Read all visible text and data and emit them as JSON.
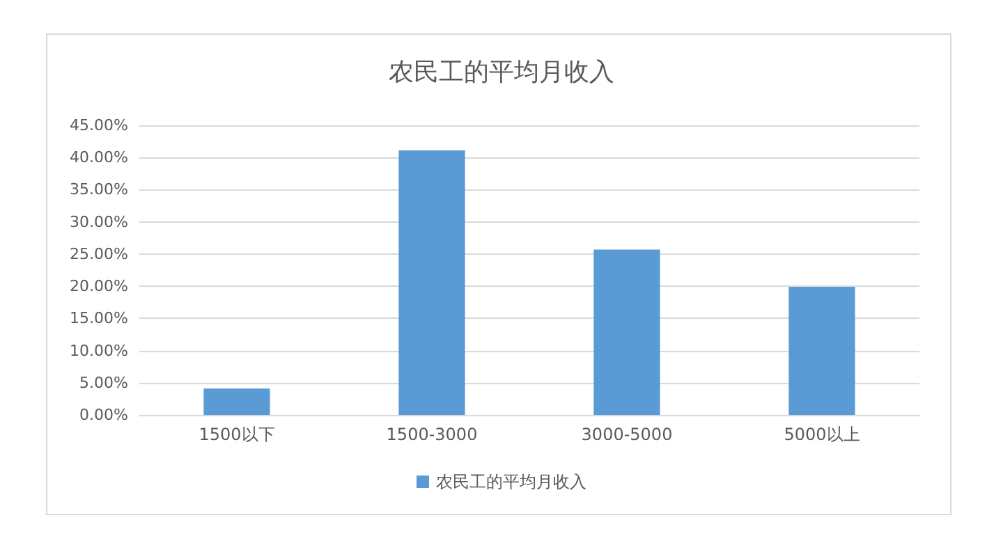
{
  "chart_data": {
    "type": "bar",
    "title": "农民工的平均月收入",
    "categories": [
      "1500以下",
      "1500-3000",
      "3000-5000",
      "5000以上"
    ],
    "series": [
      {
        "name": "农民工的平均月收入",
        "color": "#5b9bd5",
        "values": [
          4.1,
          41.1,
          25.7,
          19.9
        ]
      }
    ],
    "ylim": [
      0,
      45
    ],
    "yticks": [
      {
        "value": 0,
        "label": "0.00%"
      },
      {
        "value": 5,
        "label": "5.00%"
      },
      {
        "value": 10,
        "label": "10.00%"
      },
      {
        "value": 15,
        "label": "15.00%"
      },
      {
        "value": 20,
        "label": "20.00%"
      },
      {
        "value": 25,
        "label": "25.00%"
      },
      {
        "value": 30,
        "label": "30.00%"
      },
      {
        "value": 35,
        "label": "35.00%"
      },
      {
        "value": 40,
        "label": "40.00%"
      },
      {
        "value": 45,
        "label": "45.00%"
      }
    ],
    "grid": "y",
    "legend": "bottom"
  }
}
